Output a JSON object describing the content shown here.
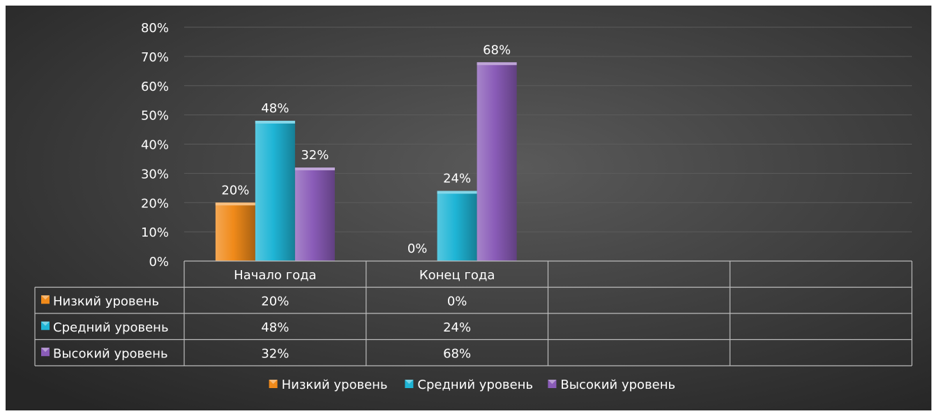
{
  "chart_data": {
    "type": "bar",
    "categories": [
      "Начало года",
      "Конец года",
      "",
      ""
    ],
    "series": [
      {
        "name": "Низкий уровень",
        "values": [
          20,
          0,
          null,
          null
        ],
        "labels": [
          "20%",
          "0%",
          "",
          ""
        ],
        "color": "#f08a1a"
      },
      {
        "name": "Средний уровень",
        "values": [
          48,
          24,
          null,
          null
        ],
        "labels": [
          "48%",
          "24%",
          "",
          ""
        ],
        "color": "#1fb5d6"
      },
      {
        "name": "Высокий уровень",
        "values": [
          32,
          68,
          null,
          null
        ],
        "labels": [
          "32%",
          "68%",
          "",
          ""
        ],
        "color": "#8a5cb8"
      }
    ],
    "ylim": [
      0,
      80
    ],
    "yticks": [
      "0%",
      "10%",
      "20%",
      "30%",
      "40%",
      "50%",
      "60%",
      "70%",
      "80%"
    ],
    "grid": true,
    "legend_position": "bottom",
    "data_table": true,
    "background_color": "#2e2e2e"
  }
}
